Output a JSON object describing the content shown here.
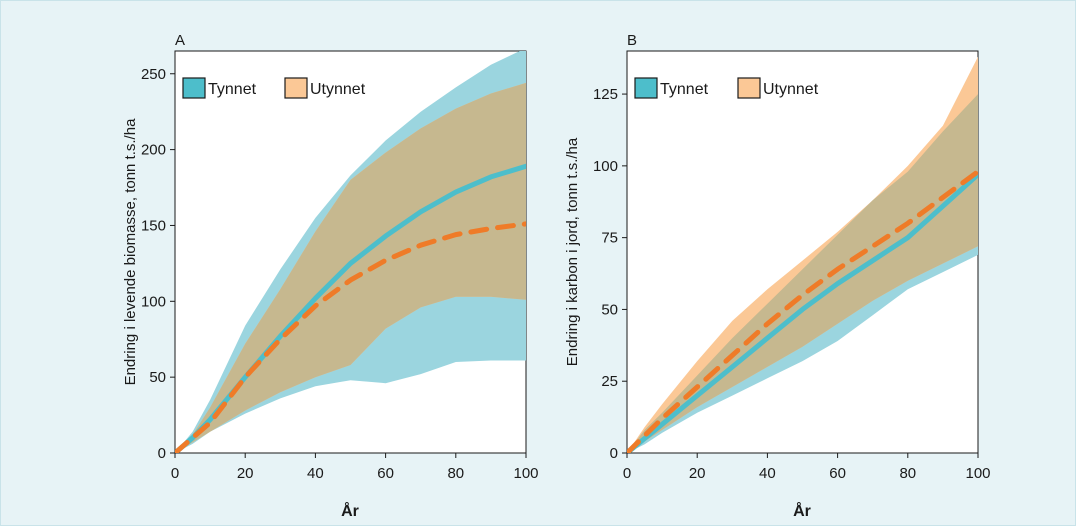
{
  "colors": {
    "tynnet_line": "#4dbecb",
    "tynnet_band": "#9bd5df",
    "utynnet_line": "#ef7b28",
    "utynnet_band": "#fbc896",
    "overlap_band": "#c6b88f",
    "background": "#e7f3f6"
  },
  "chart_data": [
    {
      "type": "line",
      "panel_label": "A",
      "xlabel": "År",
      "ylabel": "Endring i levende biomasse, tonn t.s./ha",
      "xlim": [
        0,
        100
      ],
      "ylim": [
        0,
        265
      ],
      "xticks": [
        0,
        20,
        40,
        60,
        80,
        100
      ],
      "yticks": [
        0,
        50,
        100,
        150,
        200,
        250
      ],
      "legend": {
        "position": "top-left",
        "entries": [
          "Tynnet",
          "Utynnet"
        ]
      },
      "grid": false,
      "series": [
        {
          "name": "Tynnet",
          "style": "solid",
          "x": [
            0,
            5,
            10,
            20,
            30,
            40,
            50,
            60,
            70,
            80,
            90,
            100
          ],
          "y": [
            0,
            10,
            22,
            50,
            77,
            102,
            125,
            143,
            159,
            172,
            182,
            189
          ],
          "band_low": [
            0,
            6,
            14,
            26,
            36,
            44,
            48,
            46,
            52,
            60,
            61,
            61
          ],
          "band_high": [
            0,
            14,
            35,
            84,
            121,
            155,
            183,
            206,
            225,
            241,
            256,
            267
          ]
        },
        {
          "name": "Utynnet",
          "style": "dashed",
          "x": [
            0,
            5,
            10,
            20,
            30,
            40,
            50,
            60,
            70,
            80,
            90,
            100
          ],
          "y": [
            0,
            10,
            20,
            50,
            75,
            97,
            114,
            127,
            137,
            144,
            148,
            151
          ],
          "band_low": [
            0,
            7,
            14,
            28,
            40,
            50,
            58,
            82,
            96,
            103,
            103,
            101
          ],
          "band_high": [
            0,
            12,
            30,
            72,
            108,
            146,
            180,
            198,
            214,
            227,
            237,
            244
          ]
        }
      ]
    },
    {
      "type": "line",
      "panel_label": "B",
      "xlabel": "År",
      "ylabel": "Endring i karbon i jord, tonn t.s./ha",
      "xlim": [
        0,
        100
      ],
      "ylim": [
        0,
        140
      ],
      "xticks": [
        0,
        20,
        40,
        60,
        80,
        100
      ],
      "yticks": [
        0,
        25,
        50,
        75,
        100,
        125
      ],
      "legend": {
        "position": "top-left",
        "entries": [
          "Tynnet",
          "Utynnet"
        ]
      },
      "grid": false,
      "series": [
        {
          "name": "Tynnet",
          "style": "solid",
          "x": [
            0,
            5,
            10,
            20,
            30,
            40,
            50,
            60,
            70,
            80,
            90,
            100
          ],
          "y": [
            0,
            5,
            10,
            20,
            30,
            40,
            50,
            59,
            67,
            75,
            86,
            97
          ],
          "band_low": [
            0,
            3,
            7,
            14,
            20,
            26,
            32,
            39,
            48,
            57,
            63,
            69
          ],
          "band_high": [
            0,
            8,
            14,
            27,
            40,
            52,
            64,
            76,
            88,
            98,
            112,
            125
          ]
        },
        {
          "name": "Utynnet",
          "style": "dashed",
          "x": [
            0,
            5,
            10,
            20,
            30,
            40,
            50,
            60,
            70,
            80,
            90,
            100
          ],
          "y": [
            0,
            6,
            12,
            23,
            34,
            45,
            55,
            64,
            72,
            80,
            89,
            98
          ],
          "band_low": [
            0,
            4,
            8,
            16,
            23,
            30,
            37,
            45,
            53,
            60,
            66,
            72
          ],
          "band_high": [
            0,
            9,
            17,
            32,
            46,
            57,
            67,
            77,
            88,
            100,
            114,
            138
          ]
        }
      ]
    }
  ]
}
